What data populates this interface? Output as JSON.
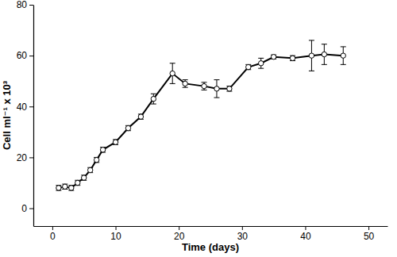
{
  "chart_data": {
    "type": "line",
    "x_label": "Time (days)",
    "y_label": "Cell ml⁻¹ x 10³",
    "x": [
      1,
      2,
      3,
      4,
      5,
      6,
      7,
      8,
      10,
      12,
      14,
      16,
      19,
      21,
      24,
      26,
      28,
      31,
      33,
      35,
      38,
      41,
      43,
      46
    ],
    "series": [
      {
        "color": "#000000",
        "marker": "circle",
        "line_style": "solid",
        "values": [
          8,
          8.5,
          8,
          10,
          12,
          15,
          19,
          23,
          26,
          31.5,
          36,
          43,
          53,
          49,
          48,
          47,
          47,
          55.5,
          57,
          59.5,
          59,
          60,
          60.5,
          60
        ],
        "errors": [
          1,
          1,
          1,
          1,
          1,
          1,
          1,
          1,
          1,
          1,
          1,
          2,
          4,
          1.5,
          1.5,
          3.5,
          1,
          1,
          2,
          0.8,
          1,
          6,
          4,
          3.5
        ]
      }
    ],
    "xlim": [
      -3,
      53
    ],
    "xticks": [
      0,
      10,
      20,
      30,
      40,
      50
    ],
    "ylim": [
      -7,
      80
    ],
    "yticks": [
      0,
      20,
      40,
      60,
      80
    ],
    "grid": false
  }
}
